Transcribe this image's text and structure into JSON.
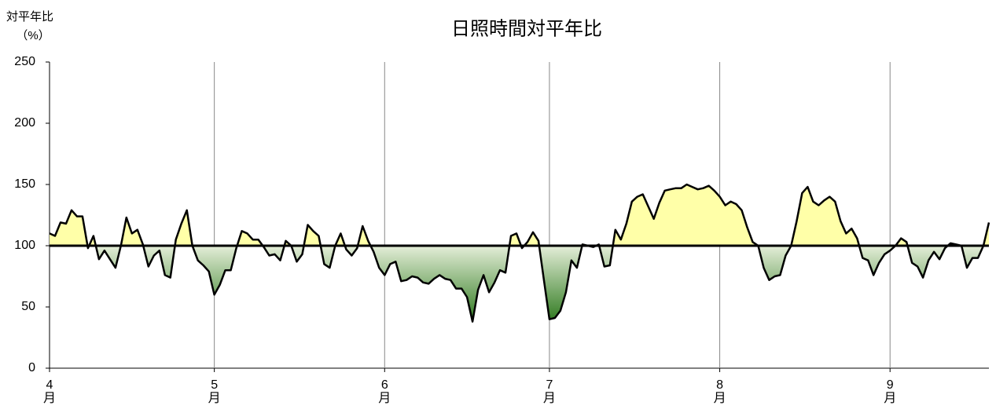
{
  "chart_data": {
    "type": "area_line",
    "title": "日照時間対平年比",
    "y_label": "対平年比",
    "y_unit": "（%）",
    "baseline": 100,
    "color": "#000000",
    "above_color": "#ffffa8",
    "below_colors": [
      "#e4eed8",
      "#2f7a1f"
    ],
    "values": [
      110,
      108,
      119,
      118,
      129,
      124,
      124,
      98,
      108,
      89,
      96,
      89,
      82,
      100,
      123,
      110,
      113,
      101,
      83,
      92,
      96,
      76,
      74,
      105,
      118,
      129,
      100,
      88,
      84,
      79,
      60,
      68,
      80,
      80,
      98,
      112,
      110,
      105,
      105,
      99,
      92,
      93,
      88,
      104,
      100,
      87,
      93,
      117,
      112,
      108,
      85,
      82,
      100,
      110,
      97,
      92,
      98,
      116,
      104,
      95,
      82,
      76,
      85,
      87,
      71,
      72,
      75,
      74,
      70,
      69,
      73,
      76,
      73,
      72,
      65,
      65,
      58,
      38,
      64,
      76,
      62,
      70,
      80,
      78,
      108,
      110,
      98,
      103,
      111,
      104,
      72,
      40,
      41,
      47,
      62,
      88,
      82,
      101,
      100,
      99,
      101,
      83,
      84,
      113,
      105,
      118,
      136,
      140,
      142,
      132,
      122,
      135,
      145,
      146,
      147,
      147,
      150,
      148,
      146,
      147,
      149,
      145,
      140,
      133,
      136,
      134,
      129,
      115,
      103,
      100,
      82,
      72,
      75,
      76,
      92,
      100,
      120,
      143,
      148,
      136,
      133,
      137,
      140,
      136,
      120,
      110,
      114,
      106,
      90,
      88,
      76,
      86,
      93,
      96,
      100,
      106,
      103,
      86,
      83,
      74,
      88,
      95,
      89,
      98,
      102,
      101,
      100,
      82,
      90,
      90,
      100,
      119
    ],
    "xlim": [
      0,
      171
    ],
    "xticks": [
      {
        "value": 0,
        "label": "4月"
      },
      {
        "value": 30,
        "label": "5月"
      },
      {
        "value": 61,
        "label": "6月"
      },
      {
        "value": 91,
        "label": "7月"
      },
      {
        "value": 122,
        "label": "8月"
      },
      {
        "value": 153,
        "label": "9月"
      }
    ],
    "ylim": [
      0,
      250
    ],
    "yticks": [
      0,
      50,
      100,
      150,
      200,
      250
    ],
    "grid": true
  }
}
